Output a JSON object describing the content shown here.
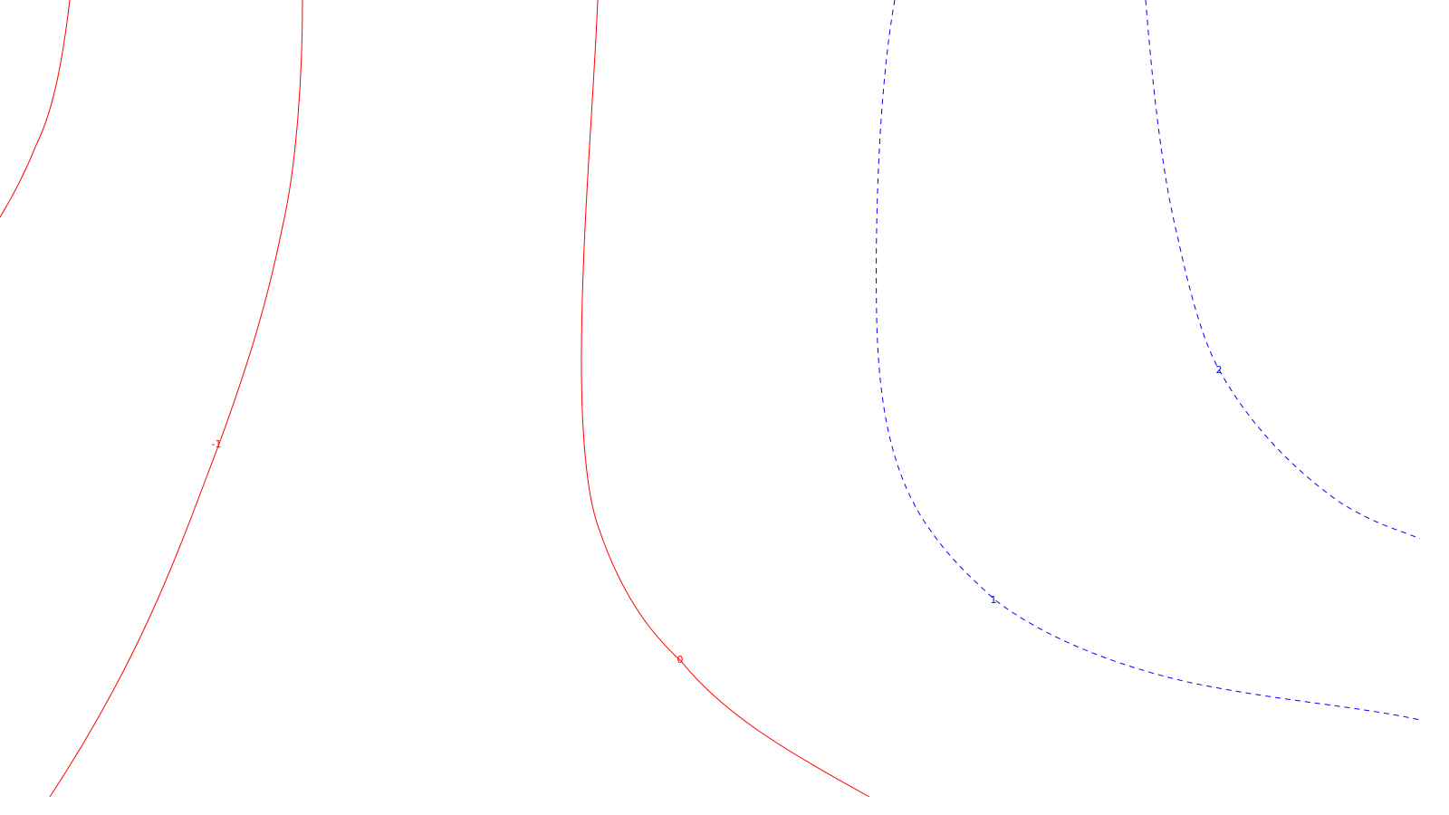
{
  "chart_data": {
    "type": "contour",
    "title": "",
    "xlabel": "",
    "ylabel": "",
    "grid": false,
    "legend": "none",
    "levels": [
      {
        "level": -1,
        "label": "-1",
        "color": "#ff0000",
        "line_style": "solid",
        "segments": 2
      },
      {
        "level": 0,
        "label": "0",
        "color": "#ff0000",
        "line_style": "solid",
        "segments": 1
      },
      {
        "level": 1,
        "label": "1",
        "color": "#0000ff",
        "line_style": "dashed",
        "segments": 1
      },
      {
        "level": 2,
        "label": "2",
        "color": "#0000ff",
        "line_style": "dashed",
        "segments": 1
      }
    ]
  }
}
